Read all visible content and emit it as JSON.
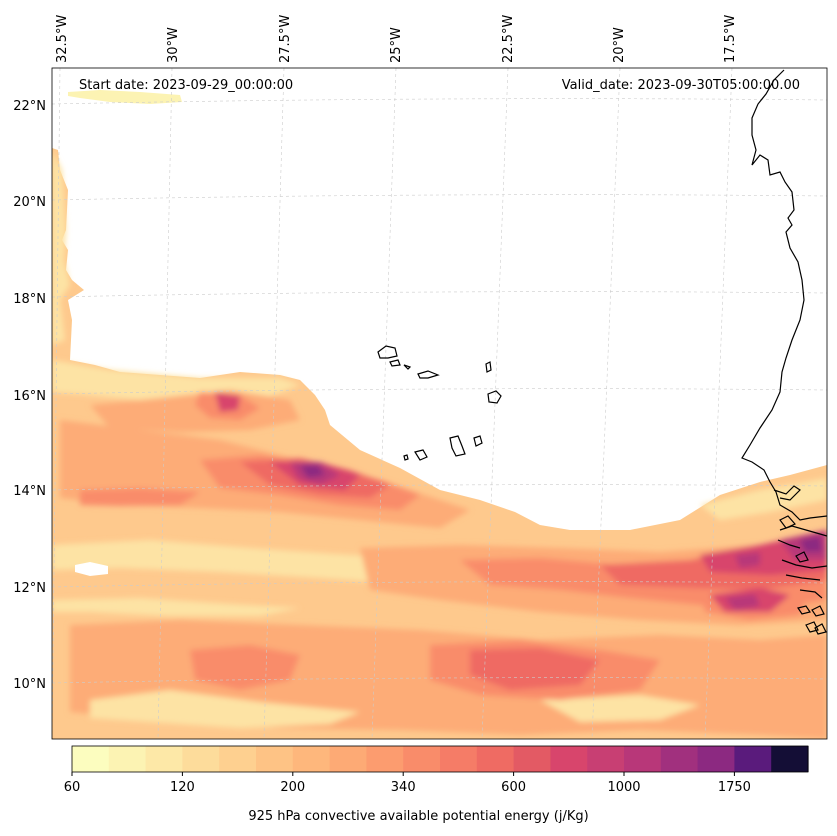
{
  "map": {
    "start_date": "Start date: 2023-09-29_00:00:00",
    "valid_date": "Valid_date: 2023-09-30T05:00:00.00",
    "lon_labels": [
      "32.5°W",
      "30°W",
      "27.5°W",
      "25°W",
      "22.5°W",
      "20°W",
      "17.5°W"
    ],
    "lat_labels": [
      "22°N",
      "20°N",
      "18°N",
      "16°N",
      "14°N",
      "12°N",
      "10°N"
    ],
    "field_colors": {
      "band_60": "#fcfdbf",
      "band_150": "#fde3a4",
      "band_250": "#fec98d",
      "band_400": "#fdac77",
      "band_600": "#f98c6a",
      "band_800": "#ef6b63",
      "band_1000": "#d8456c",
      "band_1300": "#b83779",
      "band_1500": "#8c2981"
    }
  },
  "colorbar": {
    "label": "925 hPa convective available potential energy (j/Kg)",
    "ticks": [
      "60",
      "120",
      "200",
      "340",
      "600",
      "1000",
      "1750"
    ],
    "colors": [
      "#fcfdbf",
      "#fcf3b3",
      "#fde8a7",
      "#fddc9b",
      "#fed090",
      "#fec385",
      "#feb77c",
      "#fdaa75",
      "#fc9c6f",
      "#f98c6a",
      "#f57c67",
      "#ef6b63",
      "#e35a64",
      "#d8456c",
      "#c83f73",
      "#b83779",
      "#a1307e",
      "#8c2981",
      "#5a1b7c",
      "#140e36"
    ]
  }
}
